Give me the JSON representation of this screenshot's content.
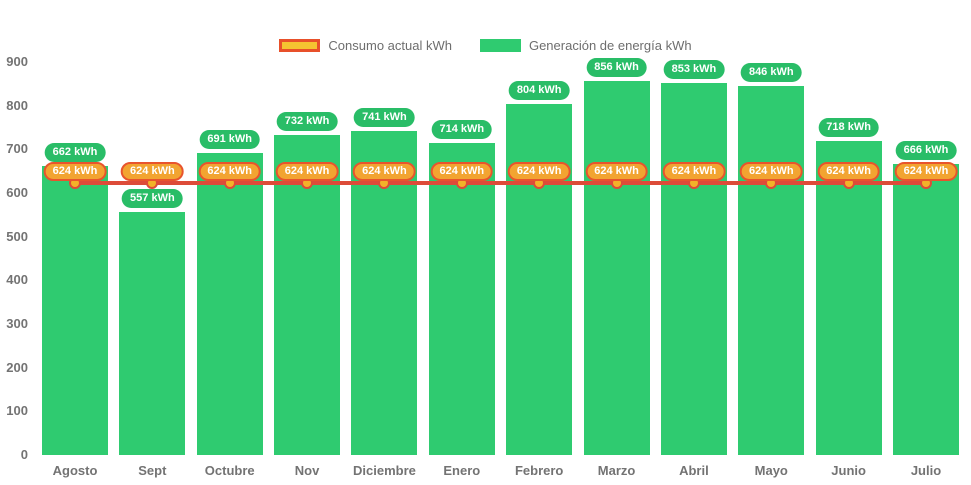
{
  "chart_data": {
    "type": "bar",
    "categories": [
      "Agosto",
      "Sept",
      "Octubre",
      "Nov",
      "Diciembre",
      "Enero",
      "Febrero",
      "Marzo",
      "Abril",
      "Mayo",
      "Junio",
      "Julio"
    ],
    "series": [
      {
        "name": "Generación de energía kWh",
        "type": "bar",
        "values": [
          662,
          557,
          691,
          732,
          741,
          714,
          804,
          856,
          853,
          846,
          718,
          666
        ]
      },
      {
        "name": "Consumo actual kWh",
        "type": "line",
        "values": [
          624,
          624,
          624,
          624,
          624,
          624,
          624,
          624,
          624,
          624,
          624,
          624
        ]
      }
    ],
    "ylim": [
      0,
      900
    ],
    "yticks": [
      0,
      100,
      200,
      300,
      400,
      500,
      600,
      700,
      800,
      900
    ],
    "label_suffix": " kWh",
    "legend_position": "top",
    "grid": false,
    "title": "",
    "xlabel": "",
    "ylabel": ""
  },
  "legend": {
    "consumo_label": "Consumo actual kWh",
    "generacion_label": "Generación de energía kWh"
  },
  "colors": {
    "bar": "#2fcb70",
    "bar-badge": "#29bd67",
    "line": "#dd4b39",
    "dot-fill": "#f3b229",
    "cons-fill": "#f2a431",
    "cons-border": "#e8542d",
    "legend-swatch-fill": "#f5c431",
    "legend-swatch-border": "#e8502a",
    "axis-text": "#737373",
    "legend-text": "#6e6e6e"
  }
}
